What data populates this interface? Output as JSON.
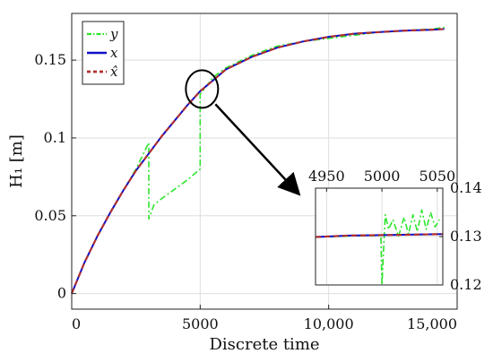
{
  "chart_data": [
    {
      "type": "line",
      "xlabel": "Discrete time",
      "ylabel": "H₁ [m]",
      "xlim": [
        0,
        15000
      ],
      "ylim": [
        -0.01,
        0.18
      ],
      "xticks": [
        0,
        5000,
        10000,
        15000
      ],
      "xtick_labels": [
        "0",
        "5000",
        "10,000",
        "15,000"
      ],
      "yticks": [
        0,
        0.05,
        0.1,
        0.15
      ],
      "ytick_labels": [
        "0",
        "0.05",
        "0.1",
        "0.15"
      ],
      "grid": true,
      "legend_position": "top-left",
      "series": [
        {
          "name": "y",
          "color": "#2ee52e",
          "style": "dash-dot",
          "x": [
            0,
            500,
            1000,
            1500,
            2000,
            2500,
            2999,
            3000,
            3200,
            3500,
            4000,
            4500,
            4999,
            5000,
            5500,
            6000,
            7000,
            8000,
            9000,
            10000,
            11000,
            12000,
            13000,
            14000,
            14500
          ],
          "y": [
            0.0,
            0.02,
            0.037,
            0.052,
            0.066,
            0.08,
            0.097,
            0.048,
            0.057,
            0.061,
            0.067,
            0.073,
            0.08,
            0.128,
            0.139,
            0.145,
            0.153,
            0.159,
            0.162,
            0.164,
            0.166,
            0.168,
            0.169,
            0.17,
            0.171
          ]
        },
        {
          "name": "x",
          "color": "#1010c8",
          "style": "solid",
          "x": [
            0,
            500,
            1000,
            1500,
            2000,
            2500,
            3000,
            3500,
            4000,
            4500,
            5000,
            5500,
            6000,
            7000,
            8000,
            9000,
            10000,
            11000,
            12000,
            13000,
            14000,
            14500
          ],
          "y": [
            0.0,
            0.02,
            0.037,
            0.052,
            0.066,
            0.079,
            0.09,
            0.101,
            0.111,
            0.121,
            0.13,
            0.137,
            0.144,
            0.152,
            0.158,
            0.162,
            0.165,
            0.167,
            0.168,
            0.169,
            0.1695,
            0.17
          ]
        },
        {
          "name": "x̂",
          "color": "#b03030",
          "style": "dashed",
          "x": [
            0,
            500,
            1000,
            1500,
            2000,
            2500,
            3000,
            3500,
            4000,
            4500,
            5000,
            5500,
            6000,
            7000,
            8000,
            9000,
            10000,
            11000,
            12000,
            13000,
            14000,
            14500
          ],
          "y": [
            0.0,
            0.02,
            0.037,
            0.052,
            0.066,
            0.079,
            0.09,
            0.101,
            0.111,
            0.121,
            0.13,
            0.137,
            0.144,
            0.152,
            0.158,
            0.162,
            0.165,
            0.167,
            0.168,
            0.169,
            0.1695,
            0.17
          ]
        }
      ]
    },
    {
      "type": "line",
      "role": "inset",
      "xlim": [
        4940,
        5055
      ],
      "ylim": [
        0.12,
        0.14
      ],
      "xticks": [
        4950,
        5000,
        5050
      ],
      "xtick_labels": [
        "4950",
        "5000",
        "5050"
      ],
      "xaxis_position": "top",
      "yticks": [
        0.12,
        0.13,
        0.14
      ],
      "ytick_labels": [
        "0.12",
        "0.13",
        "0.14"
      ],
      "yaxis_position": "right",
      "grid": true,
      "series": [
        {
          "name": "y",
          "color": "#2ee52e",
          "style": "dash-dot",
          "x": [
            4940,
            4960,
            4980,
            4999,
            5000,
            5003,
            5006,
            5010,
            5015,
            5020,
            5024,
            5028,
            5032,
            5036,
            5040,
            5044,
            5048,
            5052
          ],
          "y": [
            0.1299,
            0.13,
            0.1302,
            0.1302,
            0.12,
            0.1345,
            0.1315,
            0.1335,
            0.13,
            0.134,
            0.1305,
            0.1345,
            0.131,
            0.1355,
            0.1315,
            0.135,
            0.132,
            0.1335
          ]
        },
        {
          "name": "x",
          "color": "#1010c8",
          "style": "solid",
          "x": [
            4940,
            4970,
            5000,
            5030,
            5055
          ],
          "y": [
            0.1299,
            0.1302,
            0.1303,
            0.1304,
            0.1305
          ]
        },
        {
          "name": "x̂",
          "color": "#b03030",
          "style": "dashed",
          "x": [
            4940,
            4970,
            5000,
            5030,
            5055
          ],
          "y": [
            0.1299,
            0.1302,
            0.1303,
            0.1304,
            0.1305
          ]
        }
      ]
    }
  ]
}
